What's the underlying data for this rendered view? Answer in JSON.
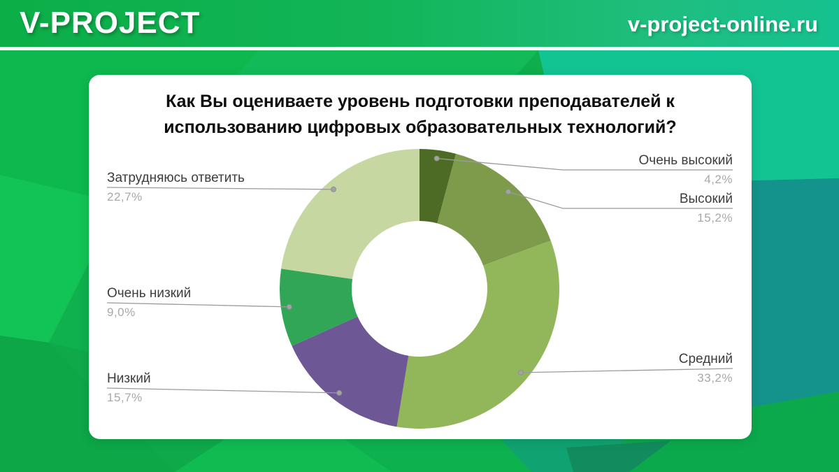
{
  "header": {
    "brand": "V-PROJECT",
    "site": "v-project-online.ru"
  },
  "theme": {
    "header_gradient": [
      "#0bae47",
      "#12b557",
      "#1fbe7e",
      "#16c190"
    ],
    "facets": [
      "#0db84e",
      "#12c355",
      "#0da747",
      "#12bb57",
      "#0fb04e",
      "#0fa94a",
      "#12c492",
      "#13938b",
      "#0ca94c",
      "#10bc52",
      "#0db14e",
      "#11a272",
      "#128c5f"
    ],
    "card_bg": "#ffffff",
    "leader_line_color": "#9b9b9b",
    "label_color": "#3d3d3d",
    "percent_color": "#a8a8a8"
  },
  "chart_data": {
    "type": "donut",
    "title": "Как Вы оцениваете уровень подготовки преподавателей к использованию цифровых образовательных технологий?",
    "title_lines": [
      "Как Вы оцениваете уровень подготовки преподавателей к",
      "использованию цифровых образовательных технологий?"
    ],
    "start_angle": "top",
    "direction": "clockwise",
    "inner_radius_ratio": 0.485,
    "legend_position": "callouts",
    "slices": [
      {
        "label": "Очень высокий",
        "value": 4.2,
        "display": "4,2%",
        "color": "#4e6b26"
      },
      {
        "label": "Высокий",
        "value": 15.2,
        "display": "15,2%",
        "color": "#7d9b4a"
      },
      {
        "label": "Средний",
        "value": 33.2,
        "display": "33,2%",
        "color": "#92b75a"
      },
      {
        "label": "Низкий",
        "value": 15.7,
        "display": "15,7%",
        "color": "#6d5795"
      },
      {
        "label": "Очень низкий",
        "value": 9.0,
        "display": "9,0%",
        "color": "#31a657"
      },
      {
        "label": "Затрудняюсь ответить",
        "value": 22.7,
        "display": "22,7%",
        "color": "#c6d7a1"
      }
    ]
  }
}
